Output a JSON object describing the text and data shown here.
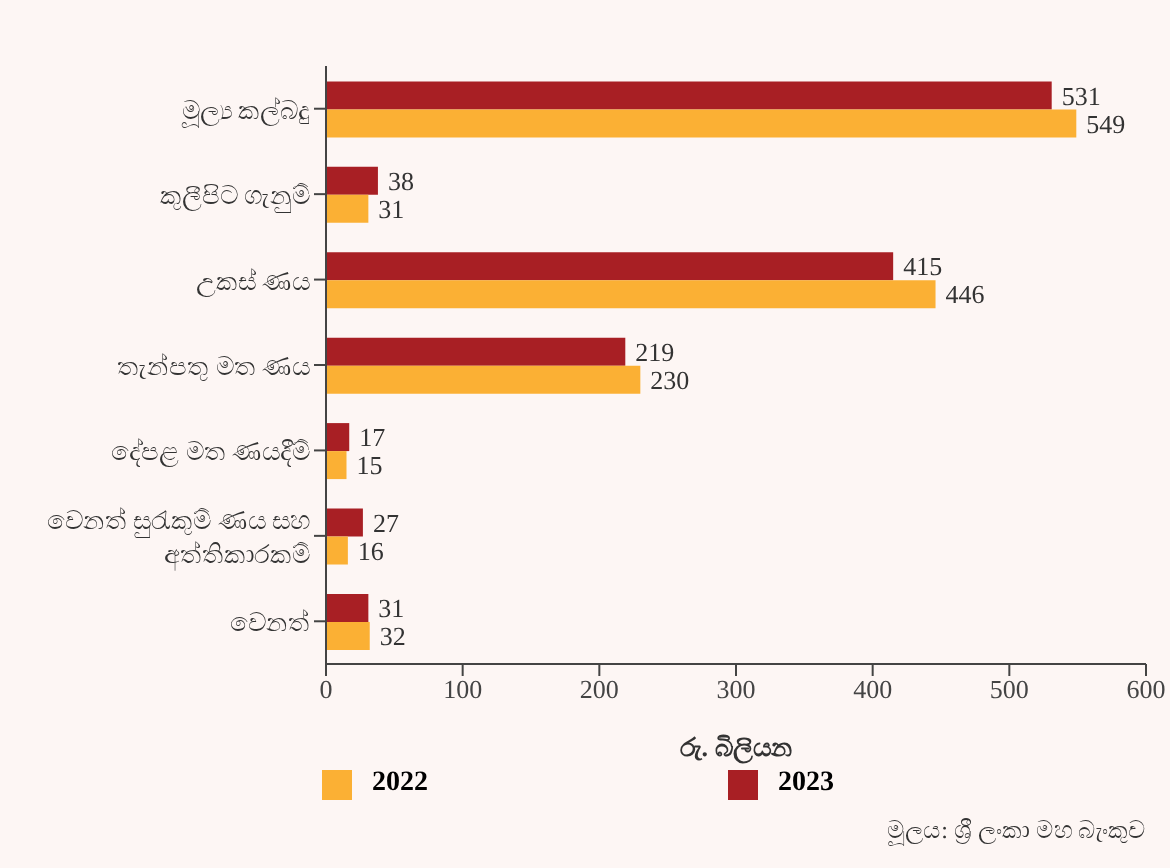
{
  "chart_data": {
    "type": "bar",
    "orientation": "horizontal",
    "categories": [
      "මූල්‍ය කල්බදු",
      "කුලීපිට ගැනුම්",
      "උකස් ණය",
      "තැන්පතු මත ණය",
      "දේපළ මත ණයදීම්",
      "වෙනත් සුරැකුම් ණය සහ අත්තිකාරකම්",
      "වෙනත්"
    ],
    "series": [
      {
        "name": "2022",
        "color": "#fbb034",
        "values": [
          549,
          31,
          446,
          230,
          15,
          16,
          32
        ]
      },
      {
        "name": "2023",
        "color": "#a81f24",
        "values": [
          531,
          38,
          415,
          219,
          17,
          27,
          31
        ]
      }
    ],
    "xlim": [
      0,
      600
    ],
    "xticks": [
      0,
      100,
      200,
      300,
      400,
      500,
      600
    ],
    "xlabel": "රු. බිලියන",
    "data_labels": true,
    "legend": "bottom",
    "grid": false,
    "annotations": [
      "මූලය: ශ්‍රී ලංකා මහ බැංකුව"
    ]
  }
}
